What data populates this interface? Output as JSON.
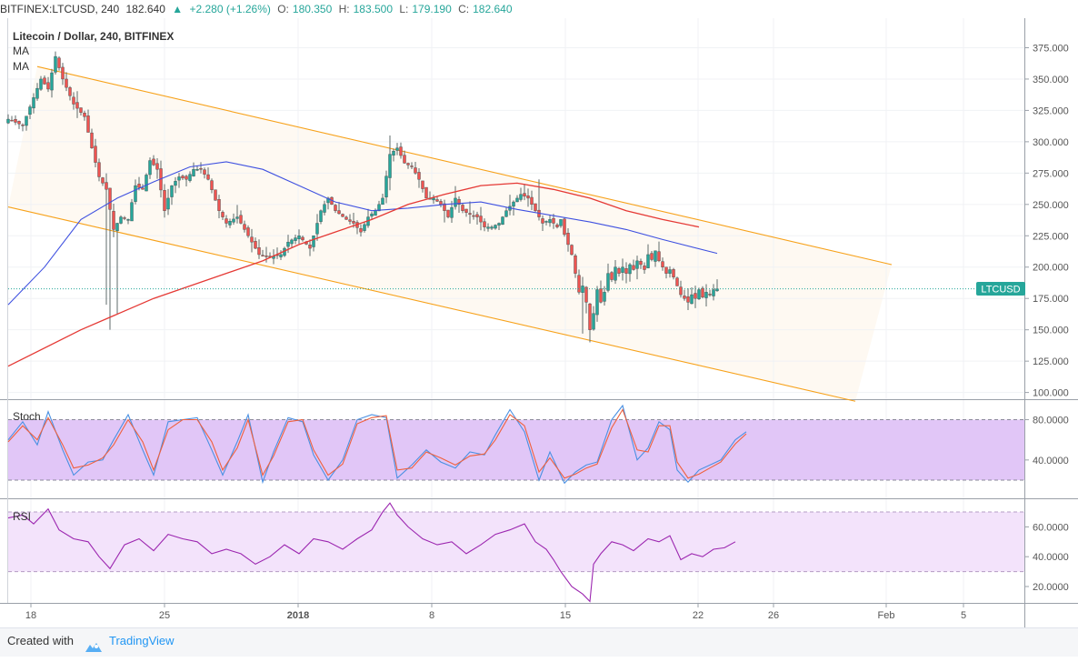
{
  "header": {
    "symbol": "BITFINEX:LTCUSD, 240",
    "last": "182.640",
    "change": "+2.280 (+1.26%)",
    "o_label": "O:",
    "o_val": "180.350",
    "h_label": "H:",
    "h_val": "183.500",
    "l_label": "L:",
    "l_val": "179.190",
    "c_label": "C:",
    "c_val": "182.640"
  },
  "main": {
    "title": "Litecoin / Dollar, 240, BITFINEX",
    "ma_labels": [
      "MA",
      "MA"
    ],
    "price_tag": "LTCUSD"
  },
  "panes": {
    "stoch_label": "Stoch",
    "rsi_label": "RSI"
  },
  "footer": {
    "created_with": "Created with",
    "brand": "TradingView"
  },
  "colors": {
    "up": "#26a69a",
    "down": "#ef5350",
    "channel": "#f7a21b",
    "ma_fast": "#3f51e0",
    "ma_slow": "#e53935",
    "stoch_k": "#4a90e2",
    "stoch_d": "#f0603c",
    "rsi_line": "#9c27b0",
    "stoch_band": "#e1c6f7",
    "rsi_band": "#f3e3fb"
  },
  "chart_data": {
    "type": "candlestick",
    "price_axis": {
      "ticks": [
        "375.000",
        "350.000",
        "325.000",
        "300.000",
        "275.000",
        "250.000",
        "225.000",
        "200.000",
        "175.000",
        "150.000",
        "125.000",
        "100.000"
      ],
      "range": [
        95,
        385
      ]
    },
    "x_axis": {
      "ticks": [
        "18",
        "25",
        "2018",
        "8",
        "15",
        "22",
        "26",
        "Feb",
        "5"
      ]
    },
    "last_price": 182.64,
    "close_path": [
      [
        0,
        318
      ],
      [
        4,
        313
      ],
      [
        9,
        350
      ],
      [
        11,
        342
      ],
      [
        13,
        368
      ],
      [
        15,
        350
      ],
      [
        18,
        330
      ],
      [
        21,
        320
      ],
      [
        23,
        295
      ],
      [
        25,
        272
      ],
      [
        27,
        262
      ],
      [
        29,
        230
      ],
      [
        31,
        240
      ],
      [
        33,
        238
      ],
      [
        35,
        265
      ],
      [
        37,
        262
      ],
      [
        39,
        285
      ],
      [
        41,
        278
      ],
      [
        43,
        245
      ],
      [
        45,
        265
      ],
      [
        47,
        272
      ],
      [
        49,
        270
      ],
      [
        51,
        278
      ],
      [
        53,
        278
      ],
      [
        55,
        270
      ],
      [
        58,
        245
      ],
      [
        60,
        235
      ],
      [
        63,
        240
      ],
      [
        66,
        225
      ],
      [
        69,
        210
      ],
      [
        72,
        208
      ],
      [
        75,
        210
      ],
      [
        77,
        220
      ],
      [
        80,
        225
      ],
      [
        83,
        215
      ],
      [
        86,
        245
      ],
      [
        88,
        255
      ],
      [
        90,
        245
      ],
      [
        93,
        238
      ],
      [
        95,
        235
      ],
      [
        97,
        228
      ],
      [
        99,
        240
      ],
      [
        101,
        245
      ],
      [
        103,
        255
      ],
      [
        105,
        290
      ],
      [
        107,
        295
      ],
      [
        109,
        283
      ],
      [
        111,
        280
      ],
      [
        113,
        270
      ],
      [
        115,
        255
      ],
      [
        117,
        255
      ],
      [
        119,
        250
      ],
      [
        121,
        240
      ],
      [
        123,
        255
      ],
      [
        125,
        245
      ],
      [
        127,
        242
      ],
      [
        129,
        240
      ],
      [
        131,
        232
      ],
      [
        133,
        232
      ],
      [
        135,
        235
      ],
      [
        137,
        245
      ],
      [
        139,
        252
      ],
      [
        141,
        258
      ],
      [
        143,
        255
      ],
      [
        145,
        245
      ],
      [
        147,
        235
      ],
      [
        149,
        238
      ],
      [
        151,
        232
      ],
      [
        152,
        238
      ],
      [
        153,
        226
      ],
      [
        155,
        210
      ],
      [
        156,
        195
      ],
      [
        157,
        180
      ],
      [
        158,
        185
      ],
      [
        159,
        172
      ],
      [
        160,
        150
      ],
      [
        161,
        163
      ],
      [
        162,
        182
      ],
      [
        163,
        172
      ],
      [
        164,
        180
      ],
      [
        165,
        195
      ],
      [
        166,
        190
      ],
      [
        167,
        200
      ],
      [
        168,
        195
      ],
      [
        169,
        200
      ],
      [
        170,
        195
      ],
      [
        171,
        202
      ],
      [
        172,
        198
      ],
      [
        173,
        205
      ],
      [
        174,
        202
      ],
      [
        175,
        198
      ],
      [
        176,
        210
      ],
      [
        177,
        206
      ],
      [
        178,
        213
      ],
      [
        179,
        205
      ],
      [
        180,
        200
      ],
      [
        181,
        195
      ],
      [
        182,
        198
      ],
      [
        183,
        192
      ],
      [
        184,
        185
      ],
      [
        185,
        178
      ],
      [
        186,
        175
      ],
      [
        187,
        172
      ],
      [
        188,
        178
      ],
      [
        189,
        175
      ],
      [
        190,
        182
      ],
      [
        191,
        176
      ],
      [
        192,
        180
      ],
      [
        193,
        178
      ],
      [
        194,
        182
      ],
      [
        195,
        182.64
      ]
    ],
    "channel_lines": [
      {
        "name": "upper",
        "from": [
          8,
          360
        ],
        "to": [
          243,
          202
        ]
      },
      {
        "name": "lower",
        "from": [
          0,
          248
        ],
        "to": [
          233,
          93
        ]
      }
    ],
    "ma_fast": [
      [
        0,
        170
      ],
      [
        10,
        200
      ],
      [
        20,
        238
      ],
      [
        30,
        255
      ],
      [
        40,
        268
      ],
      [
        50,
        280
      ],
      [
        60,
        284
      ],
      [
        70,
        278
      ],
      [
        80,
        265
      ],
      [
        90,
        252
      ],
      [
        100,
        245
      ],
      [
        110,
        247
      ],
      [
        120,
        250
      ],
      [
        130,
        252
      ],
      [
        140,
        246
      ],
      [
        150,
        241
      ],
      [
        160,
        236
      ],
      [
        170,
        230
      ],
      [
        180,
        222
      ],
      [
        195,
        211
      ]
    ],
    "ma_slow": [
      [
        0,
        121
      ],
      [
        20,
        150
      ],
      [
        40,
        175
      ],
      [
        60,
        195
      ],
      [
        70,
        205
      ],
      [
        80,
        218
      ],
      [
        90,
        228
      ],
      [
        100,
        238
      ],
      [
        110,
        250
      ],
      [
        120,
        258
      ],
      [
        130,
        265
      ],
      [
        140,
        267
      ],
      [
        150,
        262
      ],
      [
        160,
        255
      ],
      [
        170,
        245
      ],
      [
        180,
        238
      ],
      [
        190,
        232
      ]
    ],
    "stoch": {
      "axis_ticks": [
        "80.0000",
        "40.0000"
      ],
      "band": [
        20,
        80
      ],
      "k": [
        [
          0,
          60
        ],
        [
          4,
          78
        ],
        [
          8,
          55
        ],
        [
          11,
          88
        ],
        [
          15,
          50
        ],
        [
          18,
          25
        ],
        [
          22,
          38
        ],
        [
          26,
          40
        ],
        [
          29,
          60
        ],
        [
          33,
          85
        ],
        [
          37,
          50
        ],
        [
          40,
          25
        ],
        [
          44,
          78
        ],
        [
          48,
          80
        ],
        [
          52,
          82
        ],
        [
          56,
          50
        ],
        [
          59,
          25
        ],
        [
          63,
          58
        ],
        [
          66,
          85
        ],
        [
          70,
          18
        ],
        [
          73,
          48
        ],
        [
          77,
          82
        ],
        [
          81,
          78
        ],
        [
          84,
          45
        ],
        [
          88,
          20
        ],
        [
          92,
          40
        ],
        [
          96,
          80
        ],
        [
          100,
          85
        ],
        [
          104,
          82
        ],
        [
          107,
          22
        ],
        [
          111,
          35
        ],
        [
          115,
          50
        ],
        [
          119,
          38
        ],
        [
          123,
          32
        ],
        [
          127,
          48
        ],
        [
          131,
          45
        ],
        [
          134,
          65
        ],
        [
          138,
          90
        ],
        [
          142,
          68
        ],
        [
          146,
          20
        ],
        [
          149,
          48
        ],
        [
          153,
          17
        ],
        [
          156,
          28
        ],
        [
          159,
          35
        ],
        [
          162,
          38
        ],
        [
          166,
          80
        ],
        [
          169,
          94
        ],
        [
          173,
          40
        ],
        [
          176,
          52
        ],
        [
          179,
          78
        ],
        [
          182,
          70
        ],
        [
          184,
          30
        ],
        [
          187,
          18
        ],
        [
          190,
          30
        ],
        [
          193,
          35
        ],
        [
          196,
          40
        ],
        [
          200,
          60
        ],
        [
          203,
          68
        ]
      ],
      "d": [
        [
          0,
          58
        ],
        [
          4,
          74
        ],
        [
          8,
          60
        ],
        [
          11,
          82
        ],
        [
          15,
          55
        ],
        [
          18,
          32
        ],
        [
          22,
          35
        ],
        [
          26,
          42
        ],
        [
          29,
          55
        ],
        [
          33,
          80
        ],
        [
          37,
          58
        ],
        [
          40,
          30
        ],
        [
          44,
          70
        ],
        [
          48,
          80
        ],
        [
          52,
          80
        ],
        [
          56,
          58
        ],
        [
          59,
          30
        ],
        [
          63,
          52
        ],
        [
          66,
          80
        ],
        [
          70,
          25
        ],
        [
          73,
          44
        ],
        [
          77,
          78
        ],
        [
          81,
          80
        ],
        [
          84,
          50
        ],
        [
          88,
          25
        ],
        [
          92,
          36
        ],
        [
          96,
          76
        ],
        [
          100,
          82
        ],
        [
          104,
          84
        ],
        [
          107,
          30
        ],
        [
          111,
          32
        ],
        [
          115,
          48
        ],
        [
          119,
          42
        ],
        [
          123,
          35
        ],
        [
          127,
          44
        ],
        [
          131,
          46
        ],
        [
          134,
          60
        ],
        [
          138,
          85
        ],
        [
          142,
          74
        ],
        [
          146,
          28
        ],
        [
          149,
          42
        ],
        [
          153,
          22
        ],
        [
          156,
          26
        ],
        [
          159,
          32
        ],
        [
          162,
          36
        ],
        [
          166,
          72
        ],
        [
          169,
          90
        ],
        [
          173,
          50
        ],
        [
          176,
          48
        ],
        [
          179,
          74
        ],
        [
          182,
          74
        ],
        [
          184,
          38
        ],
        [
          187,
          22
        ],
        [
          190,
          26
        ],
        [
          193,
          32
        ],
        [
          196,
          38
        ],
        [
          200,
          56
        ],
        [
          203,
          66
        ]
      ]
    },
    "rsi": {
      "axis_ticks": [
        "60.0000",
        "40.0000",
        "20.0000"
      ],
      "band": [
        30,
        70
      ],
      "values": [
        [
          0,
          66
        ],
        [
          4,
          68
        ],
        [
          7,
          62
        ],
        [
          11,
          72
        ],
        [
          14,
          58
        ],
        [
          18,
          52
        ],
        [
          22,
          50
        ],
        [
          25,
          40
        ],
        [
          28,
          32
        ],
        [
          32,
          48
        ],
        [
          36,
          52
        ],
        [
          40,
          44
        ],
        [
          44,
          55
        ],
        [
          48,
          52
        ],
        [
          52,
          50
        ],
        [
          56,
          42
        ],
        [
          60,
          45
        ],
        [
          64,
          42
        ],
        [
          68,
          35
        ],
        [
          72,
          40
        ],
        [
          76,
          48
        ],
        [
          80,
          42
        ],
        [
          84,
          52
        ],
        [
          88,
          50
        ],
        [
          92,
          45
        ],
        [
          96,
          52
        ],
        [
          100,
          58
        ],
        [
          103,
          70
        ],
        [
          105,
          76
        ],
        [
          107,
          68
        ],
        [
          110,
          60
        ],
        [
          114,
          52
        ],
        [
          118,
          48
        ],
        [
          122,
          50
        ],
        [
          126,
          42
        ],
        [
          130,
          48
        ],
        [
          134,
          55
        ],
        [
          138,
          58
        ],
        [
          142,
          62
        ],
        [
          145,
          50
        ],
        [
          148,
          45
        ],
        [
          150,
          38
        ],
        [
          152,
          30
        ],
        [
          155,
          20
        ],
        [
          158,
          15
        ],
        [
          160,
          10
        ],
        [
          161,
          35
        ],
        [
          163,
          42
        ],
        [
          166,
          50
        ],
        [
          169,
          48
        ],
        [
          172,
          44
        ],
        [
          176,
          52
        ],
        [
          179,
          50
        ],
        [
          182,
          54
        ],
        [
          185,
          38
        ],
        [
          188,
          42
        ],
        [
          191,
          40
        ],
        [
          194,
          45
        ],
        [
          197,
          46
        ],
        [
          200,
          50
        ]
      ]
    }
  }
}
